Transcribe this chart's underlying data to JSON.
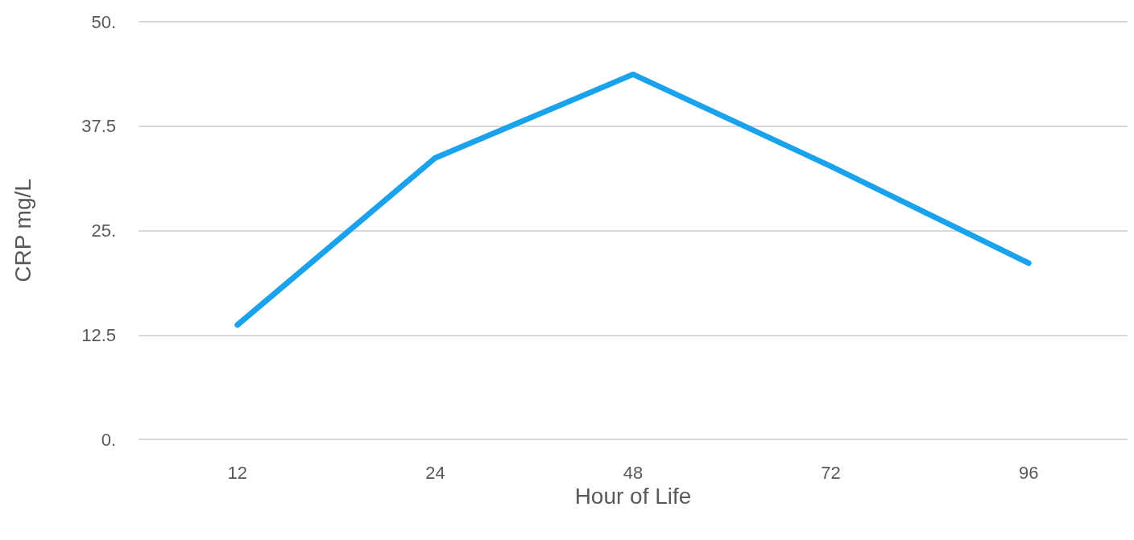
{
  "chart_data": {
    "type": "line",
    "xlabel": "Hour of Life",
    "ylabel": "CRP mg/L",
    "categories": [
      "12",
      "24",
      "48",
      "72",
      "96"
    ],
    "series": [
      {
        "color": "#1aa3ec",
        "values": [
          13.7,
          33.7,
          43.7,
          32.7,
          21.1
        ]
      }
    ],
    "ylim": [
      0,
      50
    ],
    "yticks": [
      {
        "value": 0,
        "label": "0."
      },
      {
        "value": 12.5,
        "label": "12.5"
      },
      {
        "value": 25,
        "label": "25."
      },
      {
        "value": 37.5,
        "label": "37.5"
      },
      {
        "value": 50,
        "label": "50."
      }
    ],
    "grid": "y",
    "marker": "none",
    "line_style": "solid"
  }
}
